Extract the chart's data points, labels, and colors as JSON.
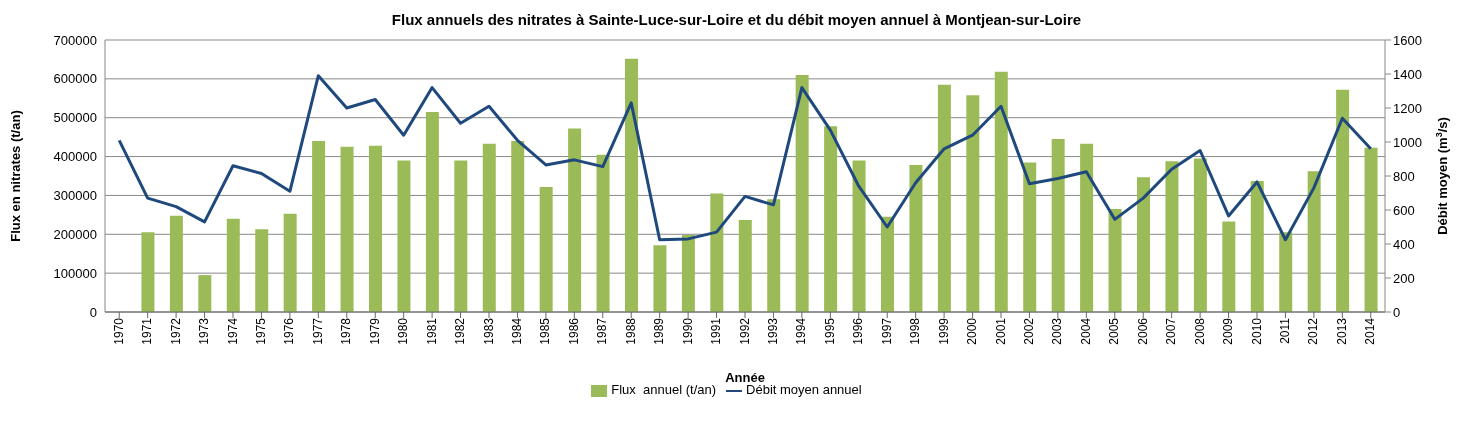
{
  "chart_data": {
    "type": "bar",
    "title": "Flux annuels des nitrates à Sainte-Luce-sur-Loire et du débit moyen annuel à Montjean-sur-Loire",
    "xlabel": "Année",
    "ylabel": "Flux en nitrates (t/an)",
    "y2label": "Débit moyen (m$^{3}$/s)",
    "categories": [
      "1970",
      "1971",
      "1972",
      "1973",
      "1974",
      "1975",
      "1976",
      "1977",
      "1978",
      "1979",
      "1980",
      "1981",
      "1982",
      "1983",
      "1984",
      "1985",
      "1986",
      "1987",
      "1988",
      "1989",
      "1990",
      "1991",
      "1992",
      "1993",
      "1994",
      "1995",
      "1996",
      "1997",
      "1998",
      "1999",
      "2000",
      "2001",
      "2002",
      "2003",
      "2004",
      "2005",
      "2006",
      "2007",
      "2008",
      "2009",
      "2010",
      "2011",
      "2012",
      "2013",
      "2014"
    ],
    "series": [
      {
        "name": "Flux  annuel (t/an)",
        "color": "#9bbb59",
        "values": [
          null,
          205000,
          248000,
          95000,
          240000,
          213000,
          253000,
          440000,
          425000,
          428000,
          390000,
          515000,
          390000,
          433000,
          440000,
          322000,
          472000,
          405000,
          652000,
          172000,
          198000,
          305000,
          237000,
          290000,
          610000,
          478000,
          390000,
          245000,
          378000,
          585000,
          558000,
          618000,
          385000,
          445000,
          433000,
          265000,
          347000,
          388000,
          395000,
          233000,
          337000,
          205000,
          362000,
          572000,
          423000
        ]
      },
      {
        "name": "Débit moyen annuel",
        "type": "line",
        "axis": "y2",
        "color": "#1f497d",
        "values": [
          1010,
          670,
          620,
          530,
          860,
          815,
          710,
          1390,
          1200,
          1250,
          1040,
          1320,
          1110,
          1210,
          1010,
          865,
          895,
          855,
          1230,
          425,
          430,
          470,
          680,
          630,
          1320,
          1070,
          740,
          500,
          760,
          960,
          1040,
          1210,
          755,
          785,
          825,
          545,
          670,
          840,
          950,
          565,
          765,
          425,
          730,
          1140,
          960
        ]
      }
    ],
    "ylim": [
      0,
      700000
    ],
    "yticks": [
      0,
      100000,
      200000,
      300000,
      400000,
      500000,
      600000,
      700000
    ],
    "y2lim": [
      0,
      1600
    ],
    "y2ticks": [
      0,
      200,
      400,
      600,
      800,
      1000,
      1200,
      1400,
      1600
    ],
    "grid": "y",
    "legend": "bottom",
    "marker": "none",
    "line_style": "solid"
  }
}
